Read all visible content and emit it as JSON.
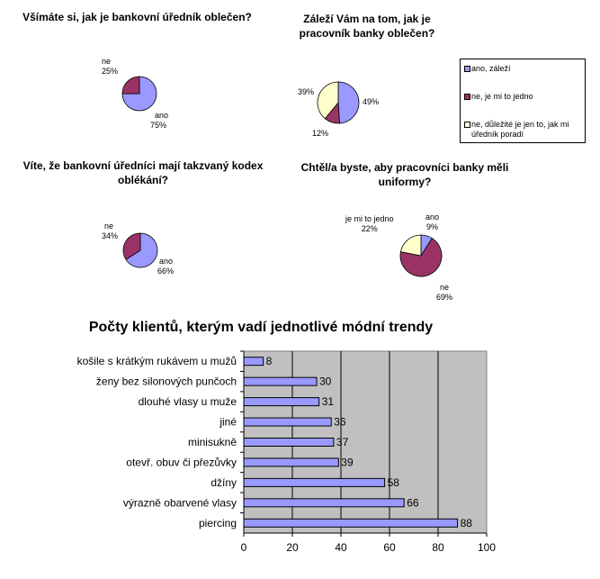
{
  "colors": {
    "ano": "#9999ff",
    "ne": "#993366",
    "neutral": "#ffffcc",
    "plot_bg": "#c0c0c0",
    "bar": "#9999ff"
  },
  "chart_data": [
    {
      "type": "pie",
      "title": "Všímáte si, jak je bankovní úředník oblečen?",
      "slices": [
        {
          "name": "ano",
          "value": 75
        },
        {
          "name": "ne",
          "value": 25
        }
      ],
      "labels": [
        {
          "name": "ano",
          "pct": "75%"
        },
        {
          "name": "ne",
          "pct": "25%"
        }
      ]
    },
    {
      "type": "pie",
      "title": "Záleží Vám na tom, jak je pracovník banky oblečen?",
      "slices": [
        {
          "name": "ano, záleží",
          "value": 49
        },
        {
          "name": "ne, je mi to jedno",
          "value": 12
        },
        {
          "name": "ne, důležité je jen to, jak mi úředník poradí",
          "value": 39
        }
      ],
      "labels": [
        {
          "pct": "49%"
        },
        {
          "pct": "12%"
        },
        {
          "pct": "39%"
        }
      ],
      "legend": [
        "ano, záleží",
        "ne, je mi to jedno",
        "ne, důležité je jen to, jak mi úředník poradí"
      ]
    },
    {
      "type": "pie",
      "title": "Víte, že bankovní úředníci mají takzvaný kodex oblékání?",
      "slices": [
        {
          "name": "ano",
          "value": 66
        },
        {
          "name": "ne",
          "value": 34
        }
      ],
      "labels": [
        {
          "name": "ano",
          "pct": "66%"
        },
        {
          "name": "ne",
          "pct": "34%"
        }
      ]
    },
    {
      "type": "pie",
      "title": "Chtěl/a byste, aby pracovníci banky měli uniformy?",
      "slices": [
        {
          "name": "ano",
          "value": 9
        },
        {
          "name": "ne",
          "value": 69
        },
        {
          "name": "je mi to jedno",
          "value": 22
        }
      ],
      "labels": [
        {
          "name": "ano",
          "pct": "9%"
        },
        {
          "name": "ne",
          "pct": "69%"
        },
        {
          "name": "je mi to jedno",
          "pct": "22%"
        }
      ]
    },
    {
      "type": "bar",
      "orientation": "horizontal",
      "title": "Počty klientů, kterým vadí jednotlivé módní trendy",
      "categories": [
        "košile s krátkým rukávem u mužů",
        "ženy bez silonových punčoch",
        "dlouhé vlasy u muže",
        "jiné",
        "minisukně",
        "otevř. obuv či přezůvky",
        "džíny",
        "výrazně obarvené vlasy",
        "piercing"
      ],
      "values": [
        8,
        30,
        31,
        36,
        37,
        39,
        58,
        66,
        88
      ],
      "xlim": [
        0,
        100
      ],
      "xticks": [
        0,
        20,
        40,
        60,
        80,
        100
      ],
      "grid": true
    }
  ]
}
